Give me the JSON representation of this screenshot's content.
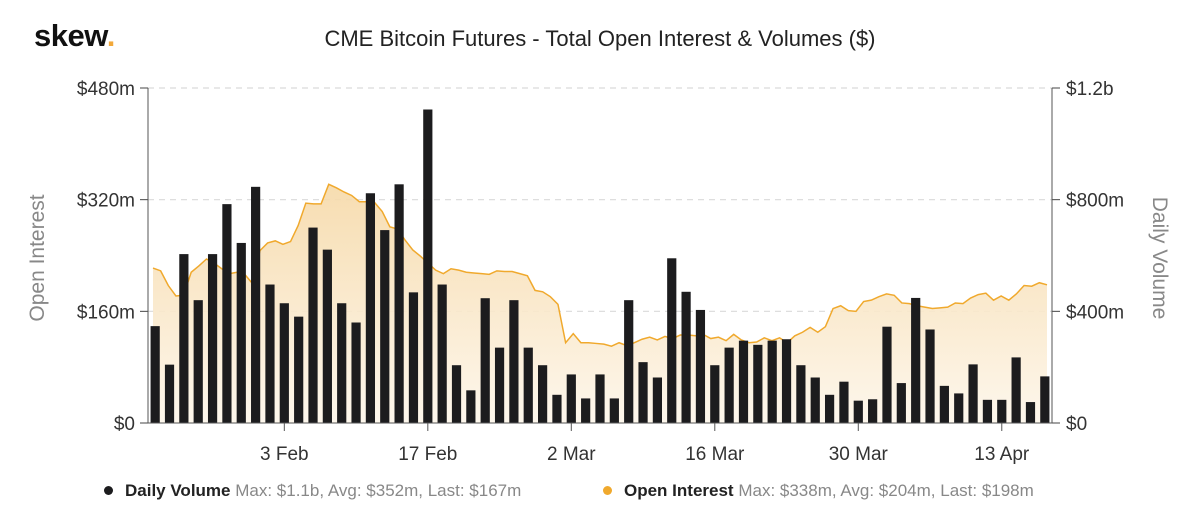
{
  "brand": {
    "name": "skew",
    "dot": "."
  },
  "colors": {
    "volume": "#1c1c1e",
    "open_interest": "#f0a92d",
    "area_top": "#f6d9a8",
    "area_bottom": "#fdf6ea",
    "grid": "#d9d9d9",
    "axis_text": "#333333",
    "axis_title": "#888888"
  },
  "legend": {
    "volume": {
      "name": "Daily Volume",
      "stats": "Max: $1.1b, Avg: $352m, Last: $167m"
    },
    "open_interest": {
      "name": "Open Interest",
      "stats": "Max: $338m, Avg: $204m, Last: $198m"
    }
  },
  "chart_data": {
    "type": "bar",
    "title": "CME Bitcoin Futures - Total Open Interest & Volumes ($)",
    "ylabel_left": "Open Interest",
    "ylabel_right": "Daily Volume",
    "ylim_left": [
      0,
      480
    ],
    "ylim_right": [
      0,
      1200
    ],
    "yticks_left": [
      {
        "value": 0,
        "label": "$0"
      },
      {
        "value": 160,
        "label": "$160m"
      },
      {
        "value": 320,
        "label": "$320m"
      },
      {
        "value": 480,
        "label": "$480m"
      }
    ],
    "yticks_right": [
      {
        "value": 0,
        "label": "$0"
      },
      {
        "value": 400,
        "label": "$400m"
      },
      {
        "value": 800,
        "label": "$800m"
      },
      {
        "value": 1200,
        "label": "$1.2b"
      }
    ],
    "xticks": [
      {
        "index": 9,
        "label": "3 Feb"
      },
      {
        "index": 19,
        "label": "17 Feb"
      },
      {
        "index": 29,
        "label": "2 Mar"
      },
      {
        "index": 39,
        "label": "16 Mar"
      },
      {
        "index": 49,
        "label": "30 Mar"
      },
      {
        "index": 59,
        "label": "13 Apr"
      }
    ],
    "grid": true,
    "legend_position": "bottom",
    "series": [
      {
        "name": "Daily Volume",
        "type": "bar",
        "axis": "right",
        "unit": "$m",
        "values": [
          347,
          209,
          605,
          440,
          605,
          784,
          645,
          846,
          496,
          429,
          381,
          700,
          621,
          429,
          360,
          823,
          691,
          855,
          468,
          1123,
          496,
          207,
          117,
          447,
          270,
          440,
          270,
          207,
          101,
          174,
          88,
          174,
          88,
          440,
          218,
          163,
          590,
          470,
          405,
          207,
          270,
          295,
          280,
          295,
          300,
          207,
          163,
          101,
          148,
          80,
          85,
          345,
          143,
          448,
          335,
          133,
          106,
          210,
          83,
          83,
          235,
          75,
          167
        ]
      },
      {
        "name": "Open Interest",
        "type": "area",
        "axis": "left",
        "unit": "$m",
        "values": [
          222,
          218,
          197,
          182,
          183,
          216,
          225,
          235,
          229,
          221,
          214,
          216,
          213,
          200,
          247,
          258,
          261,
          256,
          260,
          283,
          315,
          314,
          314,
          342,
          337,
          331,
          326,
          317,
          317,
          316,
          303,
          281,
          278,
          262,
          248,
          239,
          229,
          219,
          214,
          221,
          219,
          216,
          215,
          214,
          213,
          218,
          217,
          217,
          214,
          211,
          190,
          188,
          181,
          170,
          115,
          128,
          115,
          115,
          114,
          113,
          110,
          115,
          111,
          115,
          120,
          123,
          119,
          124,
          121,
          126,
          126,
          125,
          127,
          121,
          123,
          118,
          127,
          119,
          115,
          116,
          122,
          118,
          122,
          115,
          125,
          130,
          137,
          130,
          138,
          164,
          168,
          161,
          160,
          174,
          176,
          181,
          185,
          183,
          172,
          171,
          168,
          166,
          164,
          165,
          166,
          172,
          171,
          179,
          184,
          186,
          176,
          182,
          176,
          185,
          197,
          196,
          201,
          198
        ]
      }
    ]
  }
}
